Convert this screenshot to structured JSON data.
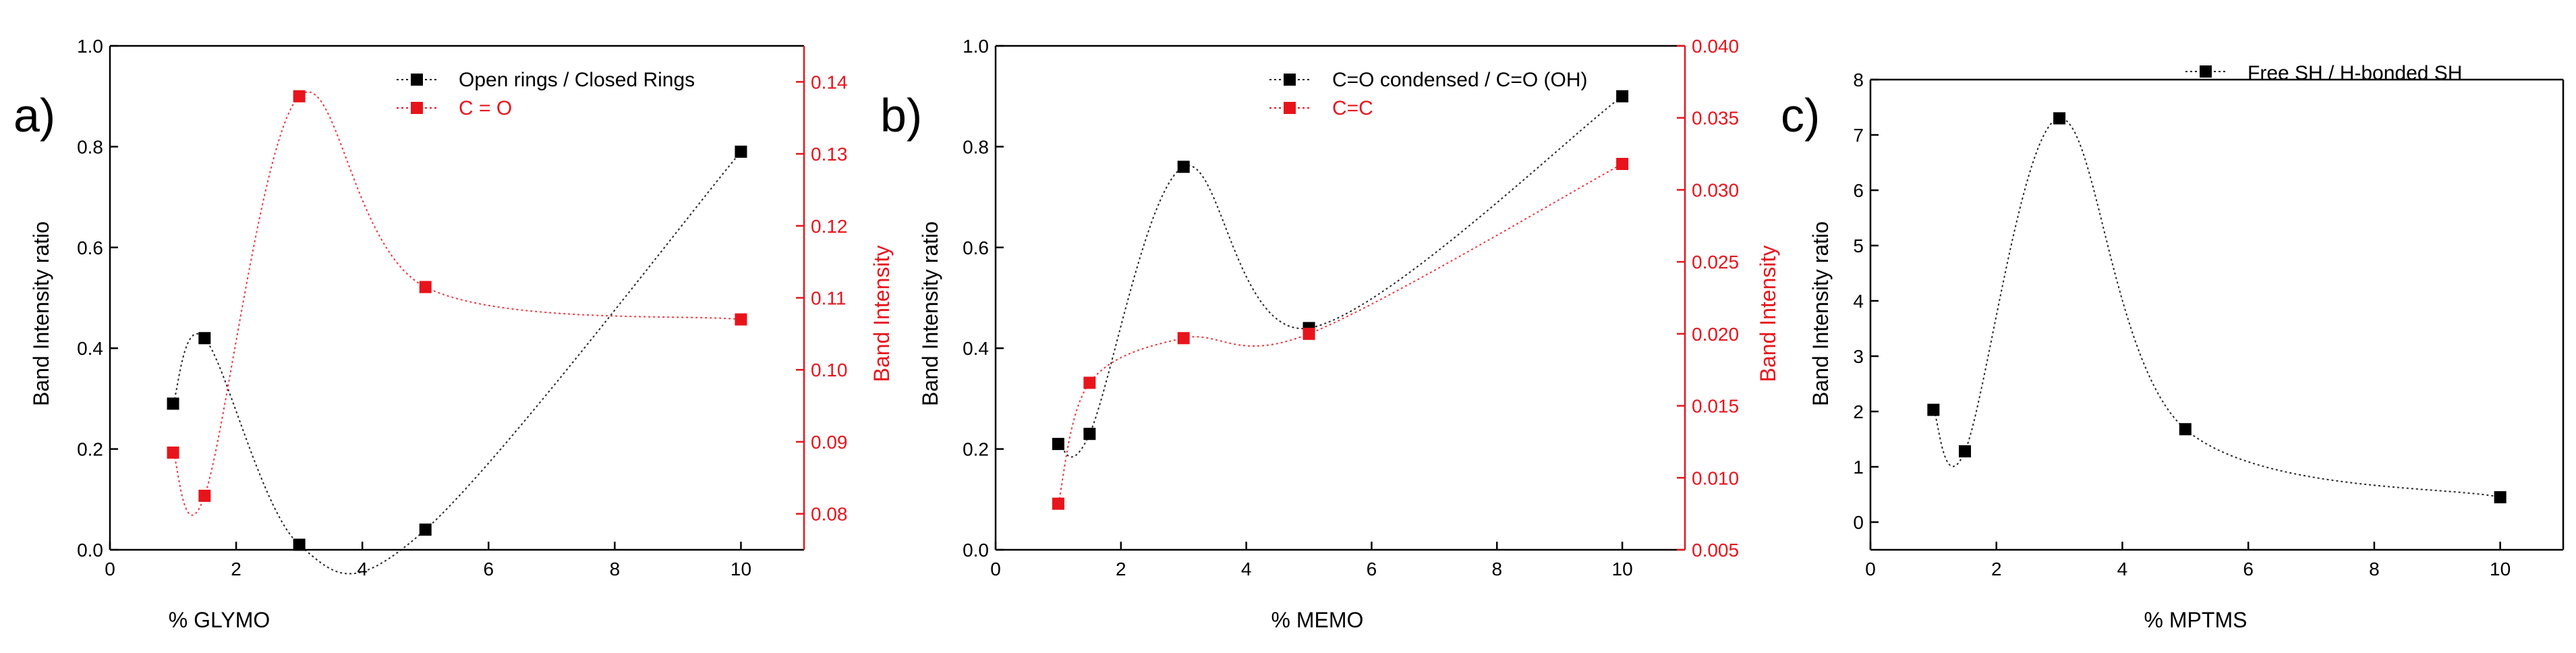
{
  "chart_data": [
    {
      "type": "scatter",
      "panel_label": "a)",
      "xlabel": "% GLYMO",
      "ylabel": "Band Intensity ratio",
      "y2label": "Band Intensity",
      "xlim": [
        0,
        11
      ],
      "ylim": [
        0,
        1.0
      ],
      "y2lim": [
        0.075,
        0.145
      ],
      "xticks": [
        0,
        2,
        4,
        6,
        8,
        10
      ],
      "yticks": [
        0.0,
        0.2,
        0.4,
        0.6,
        0.8,
        1.0
      ],
      "y2ticks": [
        0.08,
        0.09,
        0.1,
        0.11,
        0.12,
        0.13,
        0.14
      ],
      "series": [
        {
          "name": "Open rings / Closed Rings",
          "axis": "left",
          "color": "#000000",
          "x": [
            1,
            1.5,
            3,
            5,
            10
          ],
          "y": [
            0.29,
            0.42,
            0.01,
            0.04,
            0.79
          ]
        },
        {
          "name": "C = O",
          "axis": "right",
          "color": "#e8141c",
          "x": [
            1,
            1.5,
            3,
            5,
            10
          ],
          "y": [
            0.0885,
            0.0825,
            0.138,
            0.1115,
            0.107
          ]
        }
      ]
    },
    {
      "type": "scatter",
      "panel_label": "b)",
      "xlabel": "% MEMO",
      "ylabel": "Band Intensity ratio",
      "y2label": "Band Intensity",
      "xlim": [
        0,
        11
      ],
      "ylim": [
        0,
        1.0
      ],
      "y2lim": [
        0.005,
        0.04
      ],
      "xticks": [
        0,
        2,
        4,
        6,
        8,
        10
      ],
      "yticks": [
        0.0,
        0.2,
        0.4,
        0.6,
        0.8,
        1.0
      ],
      "y2ticks": [
        0.005,
        0.01,
        0.015,
        0.02,
        0.025,
        0.03,
        0.035,
        0.04
      ],
      "series": [
        {
          "name": "C=O condensed / C=O (OH)",
          "axis": "left",
          "color": "#000000",
          "x": [
            1,
            1.5,
            3,
            5,
            10
          ],
          "y": [
            0.21,
            0.23,
            0.76,
            0.44,
            0.9
          ]
        },
        {
          "name": "C=C",
          "axis": "right",
          "color": "#e8141c",
          "x": [
            1,
            1.5,
            3,
            5,
            10
          ],
          "y": [
            0.0082,
            0.0166,
            0.0197,
            0.02,
            0.0318
          ]
        }
      ]
    },
    {
      "type": "scatter",
      "panel_label": "c)",
      "xlabel": "% MPTMS",
      "ylabel": "Band Intensity ratio",
      "xlim": [
        0,
        11
      ],
      "ylim": [
        -0.5,
        8
      ],
      "xticks": [
        0,
        2,
        4,
        6,
        8,
        10
      ],
      "yticks": [
        0,
        1,
        2,
        3,
        4,
        5,
        6,
        7,
        8
      ],
      "series": [
        {
          "name": "Free SH / H-bonded SH",
          "axis": "left",
          "color": "#000000",
          "x": [
            1,
            1.5,
            3,
            5,
            10
          ],
          "y": [
            2.03,
            1.28,
            7.3,
            1.68,
            0.45
          ]
        }
      ]
    }
  ]
}
